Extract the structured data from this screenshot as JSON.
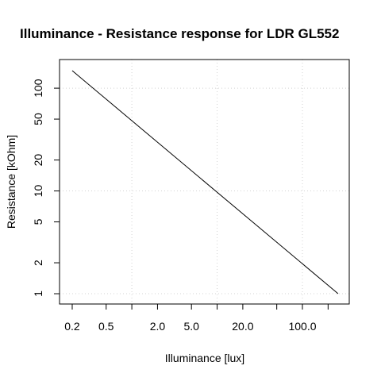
{
  "chart_data": {
    "type": "line",
    "title": "Illuminance - Resistance response for LDR GL552",
    "x_label": "Illuminance [lux]",
    "y_label": "Resistance [kOhm]",
    "x": [
      0.2,
      262
    ],
    "series": [
      {
        "color": "#000000",
        "values": [
          148,
          1
        ]
      }
    ],
    "xlog": true,
    "ylog": true,
    "xlim": [
      0.142,
      354
    ],
    "ylim": [
      0.794,
      190
    ],
    "xticks": [
      0.2,
      0.5,
      {
        "value": 1,
        "label": null
      },
      {
        "value": 2,
        "label": "2.0"
      },
      {
        "value": 5,
        "label": "5.0"
      },
      {
        "value": 10,
        "label": null
      },
      {
        "value": 20,
        "label": "20.0"
      },
      {
        "value": 50,
        "label": null
      },
      {
        "value": 100,
        "label": "100.0"
      },
      {
        "value": 200,
        "label": null
      }
    ],
    "yticks": [
      1,
      2,
      5,
      10,
      20,
      50,
      100
    ],
    "grid": true,
    "grid_x": [
      1,
      10,
      100
    ],
    "grid_y": [
      1,
      10,
      100
    ]
  }
}
